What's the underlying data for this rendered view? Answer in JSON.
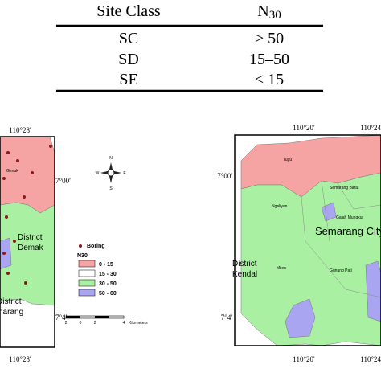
{
  "table": {
    "header": [
      "Site Class",
      {
        "main": "N",
        "sub": "30"
      }
    ],
    "rows": [
      [
        "SC",
        "> 50"
      ],
      [
        "SD",
        "15–50"
      ],
      [
        "SE",
        "< 15"
      ]
    ]
  },
  "left_map": {
    "top_coord": "110°28'",
    "bottom_coord": "110°28'",
    "lat_top": "7°00'",
    "lat_bottom": "7°4'",
    "places": [
      "Genuk",
      "District",
      "Demak",
      "District",
      "Semarang"
    ]
  },
  "compass": {
    "n": "N",
    "w": "W",
    "e": "E",
    "s": "S"
  },
  "legend": {
    "boring": "Boring",
    "title": "N30",
    "classes": [
      "0 - 15",
      "15 - 30",
      "30 - 50",
      "50 - 60"
    ]
  },
  "scale": {
    "labels": [
      "2",
      "0",
      "2",
      "4"
    ],
    "unit": "Kilometers"
  },
  "right_map": {
    "top_coords": [
      "110°20'",
      "110°24'"
    ],
    "bottom_coords": [
      "110°20'",
      "110°24'"
    ],
    "lat_top": "7°00'",
    "lat_bottom": "7°4'",
    "places": [
      "Tugu",
      "Semarang Barat",
      "Ngaliyan",
      "Gajah Mungkur",
      "Semarang City",
      "District",
      "Kendal",
      "Mijen",
      "Gunung Pati"
    ]
  }
}
